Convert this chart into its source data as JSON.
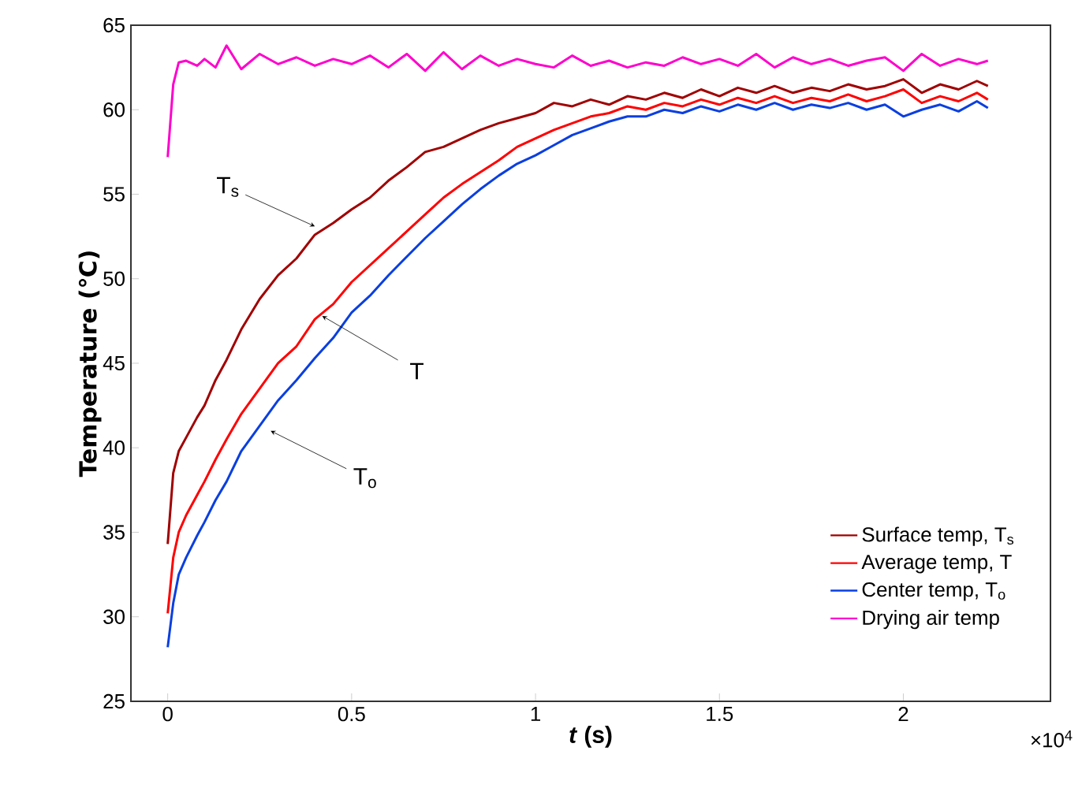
{
  "chart_data": {
    "type": "line",
    "xlabel": "*t* (s)",
    "ylabel": "Temperature (℃)",
    "xlim": [
      -0.1,
      2.4
    ],
    "ylim": [
      25,
      65
    ],
    "xticks": [
      0,
      0.5,
      1,
      1.5,
      2
    ],
    "yticks": [
      25,
      30,
      35,
      40,
      45,
      50,
      55,
      60,
      65
    ],
    "grid": false,
    "legend": "bottom right",
    "x": [
      0,
      0.015,
      0.03,
      0.05,
      0.08,
      0.1,
      0.13,
      0.16,
      0.2,
      0.25,
      0.3,
      0.35,
      0.4,
      0.45,
      0.5,
      0.55,
      0.6,
      0.65,
      0.7,
      0.75,
      0.8,
      0.85,
      0.9,
      0.95,
      1.0,
      1.05,
      1.1,
      1.15,
      1.2,
      1.25,
      1.3,
      1.35,
      1.4,
      1.45,
      1.5,
      1.55,
      1.6,
      1.65,
      1.7,
      1.75,
      1.8,
      1.85,
      1.9,
      1.95,
      2.0,
      2.05,
      2.1,
      2.15,
      2.2,
      2.23
    ],
    "series": [
      {
        "name": "Surface temp, T$_{s}$",
        "color": "#a00000",
        "values": [
          34.3,
          38.5,
          39.8,
          40.6,
          41.8,
          42.5,
          44,
          45.2,
          47,
          48.8,
          50.2,
          51.2,
          52.6,
          53.3,
          54.1,
          54.8,
          55.8,
          56.6,
          57.5,
          57.8,
          58.3,
          58.8,
          59.2,
          59.5,
          59.8,
          60.4,
          60.2,
          60.6,
          60.3,
          60.8,
          60.6,
          61.0,
          60.7,
          61.2,
          60.8,
          61.3,
          61.0,
          61.4,
          61.0,
          61.3,
          61.1,
          61.5,
          61.2,
          61.4,
          61.8,
          61.0,
          61.5,
          61.2,
          61.7,
          61.4
        ]
      },
      {
        "name": "Average temp, T",
        "color": "#ff0000",
        "values": [
          30.2,
          33.5,
          35,
          36,
          37.2,
          38,
          39.3,
          40.5,
          42,
          43.5,
          45,
          46,
          47.6,
          48.5,
          49.8,
          50.8,
          51.8,
          52.8,
          53.8,
          54.8,
          55.6,
          56.3,
          57,
          57.8,
          58.3,
          58.8,
          59.2,
          59.6,
          59.8,
          60.2,
          60.0,
          60.4,
          60.2,
          60.6,
          60.3,
          60.7,
          60.4,
          60.8,
          60.4,
          60.7,
          60.5,
          60.9,
          60.5,
          60.8,
          61.2,
          60.4,
          60.8,
          60.5,
          61.0,
          60.6
        ]
      },
      {
        "name": "Center temp, T$_{o}$",
        "color": "#0a3fe0",
        "values": [
          28.2,
          30.8,
          32.5,
          33.5,
          34.8,
          35.6,
          36.9,
          38,
          39.8,
          41.3,
          42.8,
          44,
          45.3,
          46.5,
          48,
          49,
          50.2,
          51.3,
          52.4,
          53.4,
          54.4,
          55.3,
          56.1,
          56.8,
          57.3,
          57.9,
          58.5,
          58.9,
          59.3,
          59.6,
          59.6,
          60.0,
          59.8,
          60.2,
          59.9,
          60.3,
          60.0,
          60.4,
          60.0,
          60.3,
          60.1,
          60.4,
          60.0,
          60.3,
          59.6,
          60.0,
          60.3,
          59.9,
          60.5,
          60.1
        ]
      },
      {
        "name": "Drying air temp",
        "color": "#ff00cc",
        "values": [
          57.2,
          61.5,
          62.8,
          62.9,
          62.6,
          63.0,
          62.5,
          63.8,
          62.4,
          63.3,
          62.7,
          63.1,
          62.6,
          63.0,
          62.7,
          63.2,
          62.5,
          63.3,
          62.3,
          63.4,
          62.4,
          63.2,
          62.6,
          63.0,
          62.7,
          62.5,
          63.2,
          62.6,
          62.9,
          62.5,
          62.8,
          62.6,
          63.1,
          62.7,
          63.0,
          62.6,
          63.3,
          62.5,
          63.1,
          62.7,
          63.0,
          62.6,
          62.9,
          63.1,
          62.3,
          63.3,
          62.6,
          63.0,
          62.7,
          62.9
        ]
      }
    ],
    "annotations": [
      {
        "text": "T$_{s}$",
        "x": 0.4,
        "y": 53.1
      },
      {
        "text": "T",
        "x": 0.42,
        "y": 47.8
      },
      {
        "text": "T$_{o}$",
        "x": 0.28,
        "y": 41
      },
      "×10$^{4}$"
    ]
  }
}
